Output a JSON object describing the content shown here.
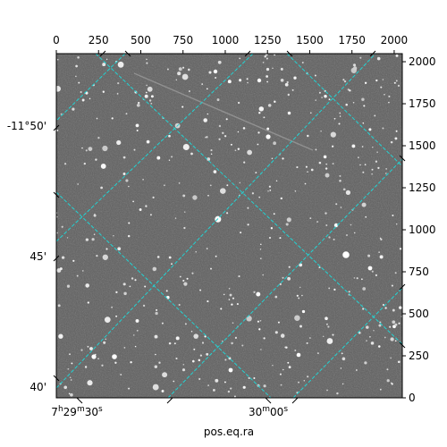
{
  "figure": {
    "xlabel": "pos.eq.ra",
    "pixel_axes": {
      "x_ticks": [
        0,
        250,
        500,
        750,
        1000,
        1250,
        1500,
        1750,
        2000
      ],
      "y_ticks": [
        0,
        250,
        500,
        750,
        1000,
        1250,
        1500,
        1750,
        2000
      ],
      "xlim": [
        0,
        2048
      ],
      "ylim": [
        0,
        2048
      ]
    },
    "ra_labels": [
      {
        "h": "7",
        "m": "29",
        "s": "30",
        "text": "7h29m30s"
      },
      {
        "m": "30",
        "s": "00",
        "text": "30m00s"
      }
    ],
    "dec_labels": [
      "-11°50'",
      "45'",
      "40'"
    ],
    "colors": {
      "grid": "#22d3d3",
      "background_sky": "#5e5e5e",
      "frame": "#000000"
    },
    "image_content": "star field"
  }
}
